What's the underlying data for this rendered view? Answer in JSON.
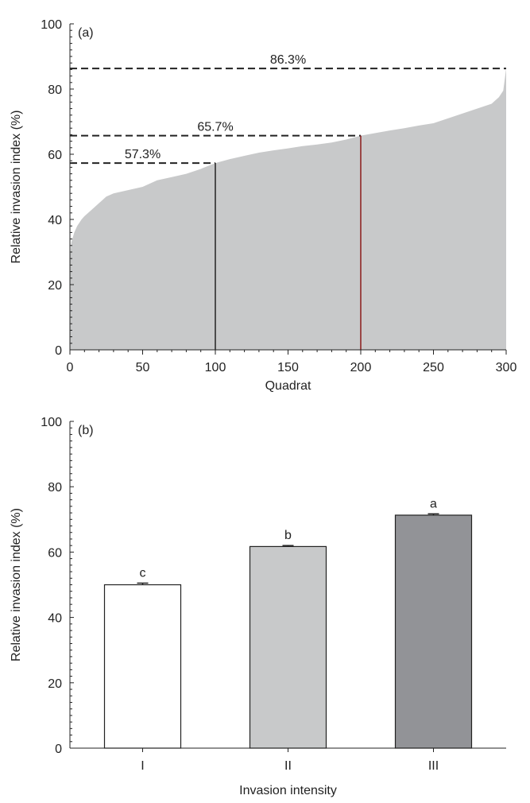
{
  "chart_data": [
    {
      "panel": "(a)",
      "type": "area",
      "xlabel": "Quadrat",
      "ylabel": "Relative invasion index (%)",
      "xlim": [
        0,
        300
      ],
      "ylim": [
        0,
        100
      ],
      "xticks": [
        0,
        50,
        100,
        150,
        200,
        250,
        300
      ],
      "yticks": [
        0,
        20,
        40,
        60,
        80,
        100
      ],
      "fill_color": "#c8c9ca",
      "sorted_curve": {
        "x": [
          0,
          1,
          3,
          5,
          8,
          10,
          15,
          20,
          25,
          30,
          40,
          50,
          60,
          70,
          80,
          90,
          100,
          110,
          120,
          130,
          140,
          150,
          160,
          170,
          180,
          190,
          200,
          210,
          220,
          230,
          240,
          250,
          260,
          270,
          280,
          290,
          295,
          298,
          300
        ],
        "y": [
          28,
          33,
          36,
          38,
          40,
          41,
          43,
          45,
          47,
          48,
          49,
          50,
          52,
          53,
          54,
          55.5,
          57.3,
          58.5,
          59.5,
          60.5,
          61.2,
          61.8,
          62.5,
          63,
          63.6,
          64.5,
          65.7,
          66.5,
          67.3,
          68,
          68.8,
          69.5,
          71,
          72.5,
          74,
          75.5,
          77.5,
          79.5,
          86.3
        ]
      },
      "annotations": [
        {
          "label": "86.3%",
          "y": 86.3,
          "x_end": 300,
          "vline": false,
          "color": "#222222"
        },
        {
          "label": "65.7%",
          "y": 65.7,
          "x_end": 200,
          "vline": true,
          "color": "#8b1a1a"
        },
        {
          "label": "57.3%",
          "y": 57.3,
          "x_end": 100,
          "vline": true,
          "color": "#222222"
        }
      ]
    },
    {
      "panel": "(b)",
      "type": "bar",
      "xlabel": "Invasion intensity",
      "ylabel": "Relative invasion index (%)",
      "ylim": [
        0,
        100
      ],
      "yticks": [
        0,
        20,
        40,
        60,
        80,
        100
      ],
      "categories": [
        "I",
        "II",
        "III"
      ],
      "values": [
        50.0,
        61.7,
        71.3
      ],
      "errors": [
        0.5,
        0.3,
        0.4
      ],
      "significance": [
        "c",
        "b",
        "a"
      ],
      "colors": [
        "#ffffff",
        "#c8c9ca",
        "#929397"
      ]
    }
  ]
}
